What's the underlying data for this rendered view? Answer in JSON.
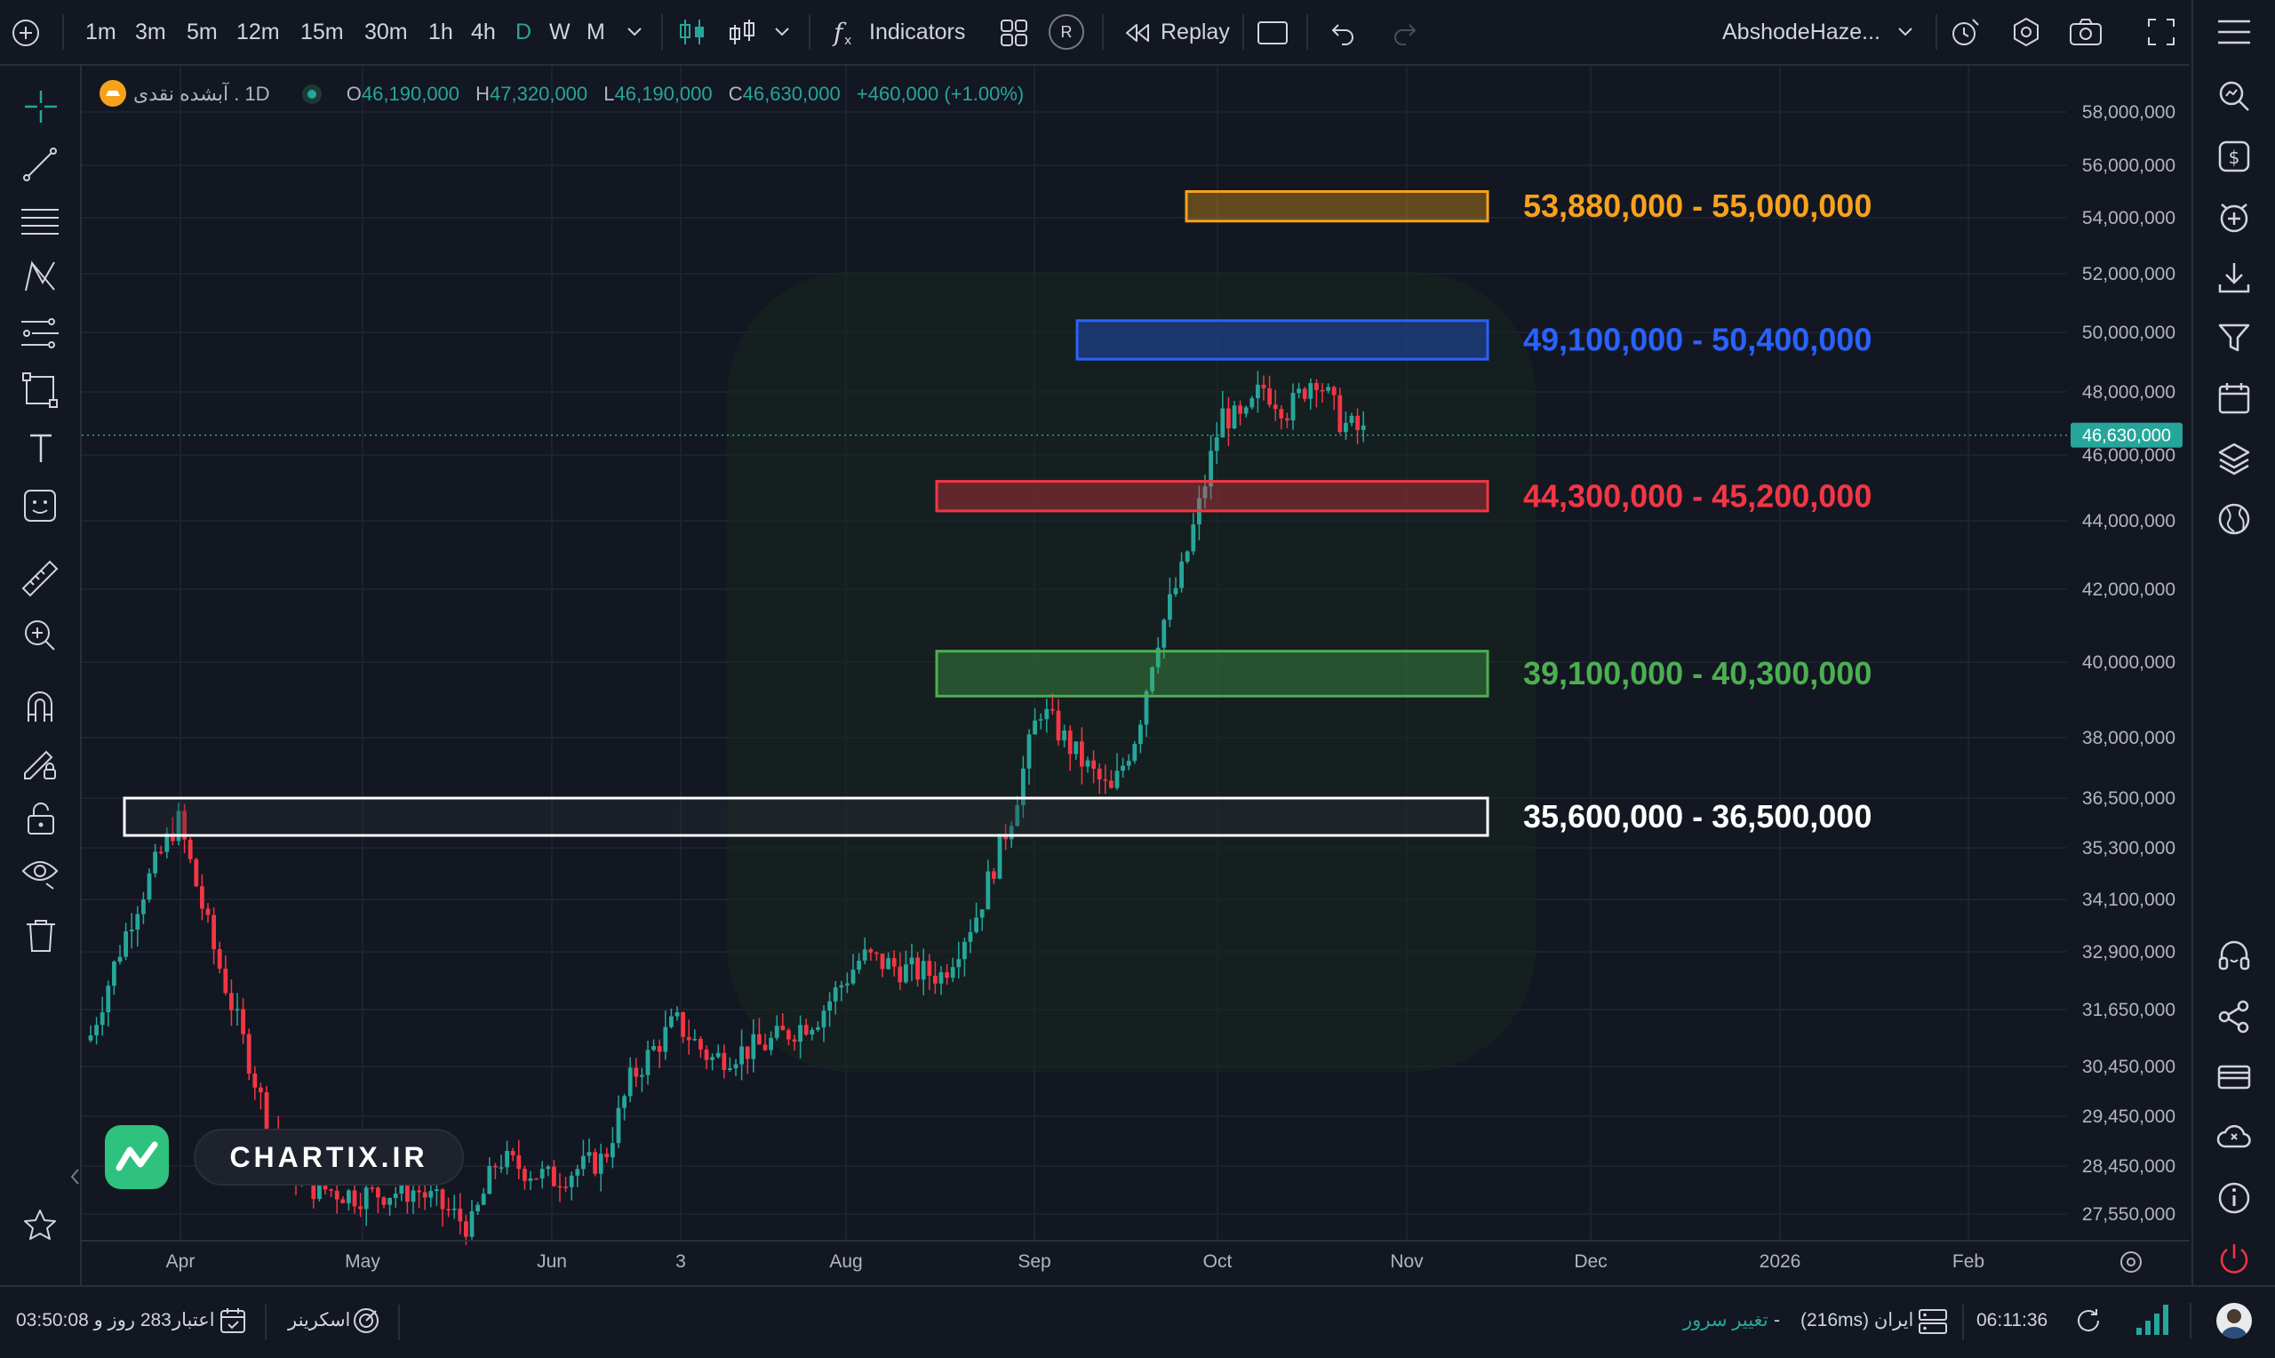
{
  "toolbar": {
    "intervals": [
      "1m",
      "3m",
      "5m",
      "12m",
      "15m",
      "30m",
      "1h",
      "4h",
      "D",
      "W",
      "M"
    ],
    "active_interval": "D",
    "indicators_label": "Indicators",
    "replay_label": "Replay",
    "r_badge": "R",
    "account_label": "AbshodeHaze..."
  },
  "legend": {
    "symbol": "آبشده نقدی",
    "interval": "1D",
    "open_label": "O",
    "open": "46,190,000",
    "high_label": "H",
    "high": "47,320,000",
    "low_label": "L",
    "low": "46,190,000",
    "close_label": "C",
    "close": "46,630,000",
    "change": "+460,000 (+1.00%)"
  },
  "zones": [
    {
      "label": "53,880,000 - 55,000,000",
      "color": "#f7a21b",
      "low": 53880000,
      "high": 55000000
    },
    {
      "label": "49,100,000 - 50,400,000",
      "color": "#2962ff",
      "low": 49100000,
      "high": 50400000
    },
    {
      "label": "44,300,000 - 45,200,000",
      "color": "#f23645",
      "low": 44300000,
      "high": 45200000
    },
    {
      "label": "39,100,000 - 40,300,000",
      "color": "#4caf50",
      "low": 39100000,
      "high": 40300000
    },
    {
      "label": "35,600,000 - 36,500,000",
      "color": "#ffffff",
      "low": 35600000,
      "high": 36500000
    }
  ],
  "price_axis": [
    "58,000,000",
    "56,000,000",
    "54,000,000",
    "52,000,000",
    "50,000,000",
    "48,000,000",
    "46,000,000",
    "44,000,000",
    "42,000,000",
    "40,000,000",
    "38,000,000",
    "36,500,000",
    "35,300,000",
    "34,100,000",
    "32,900,000",
    "31,650,000",
    "30,450,000",
    "29,450,000",
    "28,450,000",
    "27,550,000"
  ],
  "current_price": "46,630,000",
  "time_axis": [
    "Apr",
    "May",
    "Jun",
    "3",
    "Aug",
    "Sep",
    "Oct",
    "Nov",
    "Dec",
    "2026",
    "Feb"
  ],
  "watermark": "CHARTIX.IR",
  "bottom": {
    "subscription": "283 روز و 03:50:08",
    "subscription_label": "اعتبار",
    "screener_label": "اسکرینر",
    "server_change": "تغییر سرور",
    "separator": "-",
    "server": "ایران (216ms)",
    "time": "06:11:36"
  },
  "colors": {
    "up": "#26a69a",
    "down": "#f23645",
    "background": "#131722",
    "accent": "#26a69a"
  },
  "chart_data": {
    "type": "candlestick",
    "title": "آبشده نقدی · 1D",
    "ohlc_last": {
      "open": 46190000,
      "high": 47320000,
      "low": 46190000,
      "close": 46630000
    },
    "x": [
      "Apr",
      "May",
      "Jun",
      "3",
      "Aug",
      "Sep",
      "Oct",
      "Nov",
      "Dec",
      "2026",
      "Feb"
    ],
    "ylim": [
      27000000,
      58500000
    ],
    "price_path": [
      [
        "late Mar",
        31000000
      ],
      [
        "early Apr",
        36000000
      ],
      [
        "mid Apr",
        33000000
      ],
      [
        "late Apr",
        29500000
      ],
      [
        "May",
        28000000
      ],
      [
        "late May",
        27300000
      ],
      [
        "Jun",
        28400000
      ],
      [
        "late Jun",
        30500000
      ],
      [
        "early Jul",
        32000000
      ],
      [
        "mid Jul",
        30700000
      ],
      [
        "late Jul",
        31800000
      ],
      [
        "early Aug",
        32800000
      ],
      [
        "mid Aug",
        32300000
      ],
      [
        "late Aug",
        36200000
      ],
      [
        "early Sep",
        38600000
      ],
      [
        "mid Sep",
        36500000
      ],
      [
        "late Sep",
        40500000
      ],
      [
        "end Sep",
        44500000
      ],
      [
        "early Oct",
        48300000
      ],
      [
        "mid Oct",
        49300000
      ],
      [
        "late Oct",
        46630000
      ]
    ],
    "zones": [
      [
        53880000,
        55000000
      ],
      [
        49100000,
        50400000
      ],
      [
        44300000,
        45200000
      ],
      [
        39100000,
        40300000
      ],
      [
        35600000,
        36500000
      ]
    ]
  }
}
